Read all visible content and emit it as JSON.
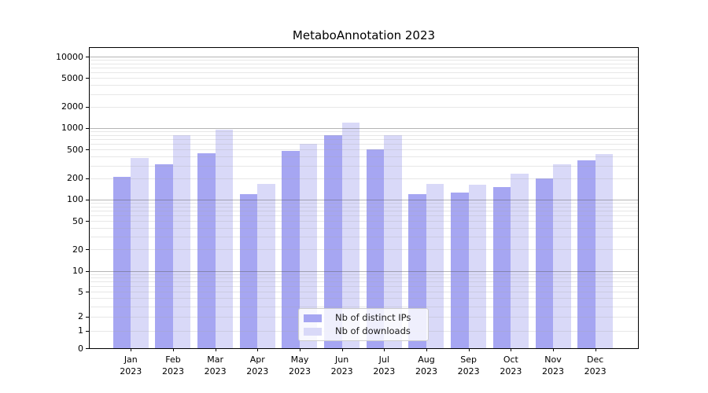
{
  "page": {
    "background": "#ffffff"
  },
  "chart_data": {
    "type": "bar",
    "title": "MetaboAnnotation 2023",
    "xlabel": "",
    "ylabel": "",
    "months": [
      "Jan",
      "Feb",
      "Mar",
      "Apr",
      "May",
      "Jun",
      "Jul",
      "Aug",
      "Sep",
      "Oct",
      "Nov",
      "Dec"
    ],
    "year_label": "2023",
    "categories": [
      "Jan 2023",
      "Feb 2023",
      "Mar 2023",
      "Apr 2023",
      "May 2023",
      "Jun 2023",
      "Jul 2023",
      "Aug 2023",
      "Sep 2023",
      "Oct 2023",
      "Nov 2023",
      "Dec 2023"
    ],
    "series": [
      {
        "name": "Nb of distinct IPs",
        "color": "#a6a6f2",
        "values": [
          210,
          310,
          450,
          120,
          480,
          800,
          500,
          120,
          125,
          150,
          200,
          350
        ]
      },
      {
        "name": "Nb of downloads",
        "color": "#d9d9f8",
        "values": [
          380,
          800,
          950,
          165,
          600,
          1200,
          800,
          165,
          160,
          230,
          310,
          430
        ]
      }
    ],
    "y_axis": {
      "scale": "symlog",
      "ylim": [
        0,
        10000
      ],
      "tick_values": [
        0,
        1,
        2,
        5,
        10,
        20,
        50,
        100,
        200,
        500,
        1000,
        2000,
        5000,
        10000
      ],
      "tick_labels": [
        "0",
        "1",
        "2",
        "5",
        "10",
        "20",
        "50",
        "100",
        "200",
        "500",
        "1000",
        "2000",
        "5000",
        "10000"
      ]
    },
    "grid": {
      "major_on": true,
      "minor_on": true,
      "major_color": "#ababab",
      "minor_color": "#e6e6e6"
    },
    "legend": {
      "position": "lower center"
    },
    "axis_color": "#000000"
  }
}
